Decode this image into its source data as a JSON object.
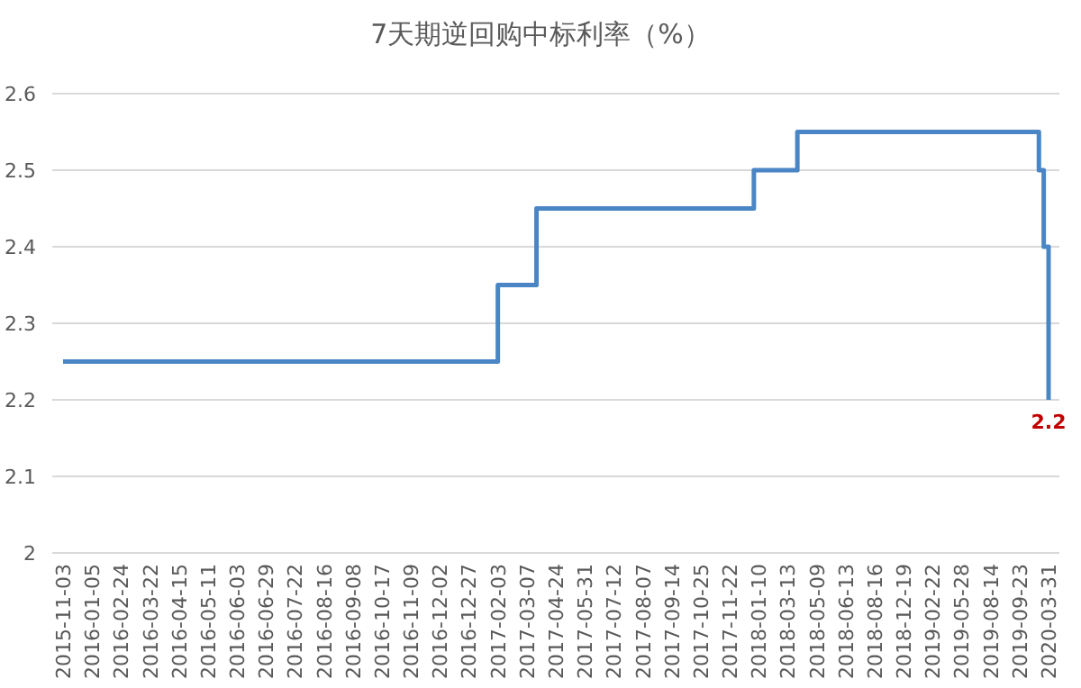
{
  "chart_data": {
    "type": "step",
    "title": "7天期逆回购中标利率（%）",
    "categories": [
      "2015-11-03",
      null,
      null,
      null,
      null,
      null,
      "2016-01-05",
      null,
      null,
      null,
      null,
      null,
      "2016-02-24",
      null,
      null,
      null,
      null,
      null,
      "2016-03-22",
      null,
      null,
      null,
      null,
      null,
      "2016-04-15",
      null,
      null,
      null,
      null,
      null,
      "2016-05-11",
      null,
      null,
      null,
      null,
      null,
      "2016-06-03",
      null,
      null,
      null,
      null,
      null,
      "2016-06-29",
      null,
      null,
      null,
      null,
      null,
      "2016-07-22",
      null,
      null,
      null,
      null,
      null,
      "2016-08-16",
      null,
      null,
      null,
      null,
      null,
      "2016-09-08",
      null,
      null,
      null,
      null,
      null,
      "2016-10-17",
      null,
      null,
      null,
      null,
      null,
      "2016-11-09",
      null,
      null,
      null,
      null,
      null,
      "2016-12-02",
      null,
      null,
      null,
      null,
      null,
      "2016-12-27",
      null,
      null,
      null,
      null,
      null,
      "2017-02-03",
      null,
      null,
      null,
      null,
      null,
      "2017-03-07",
      null,
      null,
      null,
      null,
      null,
      "2017-04-24",
      null,
      null,
      null,
      null,
      null,
      "2017-05-31",
      null,
      null,
      null,
      null,
      null,
      "2017-07-12",
      null,
      null,
      null,
      null,
      null,
      "2017-08-07",
      null,
      null,
      null,
      null,
      null,
      "2017-09-14",
      null,
      null,
      null,
      null,
      null,
      "2017-10-25",
      null,
      null,
      null,
      null,
      null,
      "2017-11-22",
      null,
      null,
      null,
      null,
      null,
      "2018-01-10",
      null,
      null,
      null,
      null,
      null,
      "2018-03-13",
      null,
      null,
      null,
      null,
      null,
      "2018-05-09",
      null,
      null,
      null,
      null,
      null,
      "2018-06-13",
      null,
      null,
      null,
      null,
      null,
      "2018-08-16",
      null,
      null,
      null,
      null,
      null,
      "2018-12-19",
      null,
      null,
      null,
      null,
      null,
      "2019-02-22",
      null,
      null,
      null,
      null,
      null,
      "2019-05-28",
      null,
      null,
      null,
      null,
      null,
      "2019-08-14",
      null,
      null,
      null,
      null,
      null,
      "2019-09-23",
      null,
      null,
      null,
      null,
      null,
      "2020-03-31"
    ],
    "series": [
      {
        "color": "#4a86c5",
        "values": [
          2.25,
          2.25,
          2.25,
          2.25,
          2.25,
          2.25,
          2.25,
          2.25,
          2.25,
          2.25,
          2.25,
          2.25,
          2.25,
          2.25,
          2.25,
          2.25,
          2.25,
          2.25,
          2.25,
          2.25,
          2.25,
          2.25,
          2.25,
          2.25,
          2.25,
          2.25,
          2.25,
          2.25,
          2.25,
          2.25,
          2.25,
          2.25,
          2.25,
          2.25,
          2.25,
          2.25,
          2.25,
          2.25,
          2.25,
          2.25,
          2.25,
          2.25,
          2.25,
          2.25,
          2.25,
          2.25,
          2.25,
          2.25,
          2.25,
          2.25,
          2.25,
          2.25,
          2.25,
          2.25,
          2.25,
          2.25,
          2.25,
          2.25,
          2.25,
          2.25,
          2.25,
          2.25,
          2.25,
          2.25,
          2.25,
          2.25,
          2.25,
          2.25,
          2.25,
          2.25,
          2.25,
          2.25,
          2.25,
          2.25,
          2.25,
          2.25,
          2.25,
          2.25,
          2.25,
          2.25,
          2.25,
          2.25,
          2.25,
          2.25,
          2.25,
          2.25,
          2.25,
          2.25,
          2.25,
          2.25,
          2.35,
          2.35,
          2.35,
          2.35,
          2.35,
          2.35,
          2.35,
          2.35,
          2.45,
          2.45,
          2.45,
          2.45,
          2.45,
          2.45,
          2.45,
          2.45,
          2.45,
          2.45,
          2.45,
          2.45,
          2.45,
          2.45,
          2.45,
          2.45,
          2.45,
          2.45,
          2.45,
          2.45,
          2.45,
          2.45,
          2.45,
          2.45,
          2.45,
          2.45,
          2.45,
          2.45,
          2.45,
          2.45,
          2.45,
          2.45,
          2.45,
          2.45,
          2.45,
          2.45,
          2.45,
          2.45,
          2.45,
          2.45,
          2.45,
          2.45,
          2.45,
          2.45,
          2.45,
          2.5,
          2.5,
          2.5,
          2.5,
          2.5,
          2.5,
          2.5,
          2.5,
          2.5,
          2.55,
          2.55,
          2.55,
          2.55,
          2.55,
          2.55,
          2.55,
          2.55,
          2.55,
          2.55,
          2.55,
          2.55,
          2.55,
          2.55,
          2.55,
          2.55,
          2.55,
          2.55,
          2.55,
          2.55,
          2.55,
          2.55,
          2.55,
          2.55,
          2.55,
          2.55,
          2.55,
          2.55,
          2.55,
          2.55,
          2.55,
          2.55,
          2.55,
          2.55,
          2.55,
          2.55,
          2.55,
          2.55,
          2.55,
          2.55,
          2.55,
          2.55,
          2.55,
          2.55,
          2.55,
          2.55,
          2.55,
          2.55,
          2.55,
          2.55,
          2.5,
          2.4,
          2.2
        ]
      }
    ],
    "ylim": [
      2,
      2.6
    ],
    "yticks": [
      2,
      2.1,
      2.2,
      2.3,
      2.4,
      2.5,
      2.6
    ],
    "grid": "y",
    "annotations": [
      {
        "text": "2.2",
        "x": "2020-03-31",
        "y": 2.2
      }
    ]
  }
}
